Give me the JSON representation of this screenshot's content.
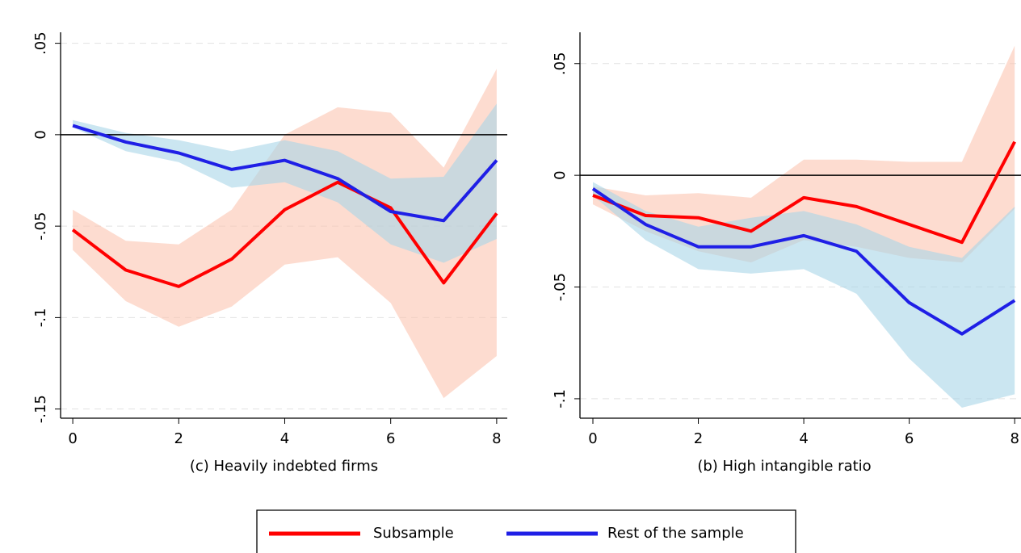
{
  "chart_data": [
    {
      "type": "line",
      "title": "(c)  Heavily indebted firms",
      "x": [
        0,
        1,
        2,
        3,
        4,
        5,
        6,
        7,
        8
      ],
      "xlim": [
        -0.23,
        8.2
      ],
      "xticks": [
        0,
        2,
        4,
        6,
        8
      ],
      "ylim": [
        -0.155,
        0.056
      ],
      "yticks": [
        {
          "value": -0.15,
          "label": "-.15"
        },
        {
          "value": -0.1,
          "label": "-.1"
        },
        {
          "value": -0.05,
          "label": "-.05"
        },
        0,
        {
          "value": 0.05,
          "label": ".05"
        }
      ],
      "grid": true,
      "series": [
        {
          "name": "Subsample",
          "color": "#ff0000",
          "band_color": "#fbc4b0",
          "values": [
            -0.052,
            -0.074,
            -0.083,
            -0.068,
            -0.041,
            -0.026,
            -0.04,
            -0.081,
            -0.043
          ],
          "lower": [
            -0.063,
            -0.091,
            -0.105,
            -0.094,
            -0.071,
            -0.067,
            -0.092,
            -0.144,
            -0.121
          ],
          "upper": [
            -0.041,
            -0.058,
            -0.06,
            -0.041,
            0.0,
            0.015,
            0.012,
            -0.018,
            0.036
          ]
        },
        {
          "name": "Rest of the sample",
          "color": "#1f1fe6",
          "band_color": "#a9d6e8",
          "values": [
            0.005,
            -0.004,
            -0.01,
            -0.019,
            -0.014,
            -0.024,
            -0.042,
            -0.047,
            -0.014
          ],
          "lower": [
            0.004,
            -0.009,
            -0.015,
            -0.029,
            -0.026,
            -0.037,
            -0.06,
            -0.07,
            -0.057
          ],
          "upper": [
            0.008,
            0.001,
            -0.003,
            -0.009,
            -0.003,
            -0.009,
            -0.024,
            -0.023,
            0.017
          ]
        }
      ]
    },
    {
      "type": "line",
      "title": "(b)  High intangible ratio",
      "x": [
        0,
        1,
        2,
        3,
        4,
        5,
        6,
        7,
        8
      ],
      "xlim": [
        -0.245,
        8.12
      ],
      "xticks": [
        0,
        2,
        4,
        6,
        8
      ],
      "ylim": [
        -0.1087,
        0.064
      ],
      "yticks": [
        {
          "value": -0.1,
          "label": "-.1"
        },
        {
          "value": -0.05,
          "label": "-.05"
        },
        0,
        {
          "value": 0.05,
          "label": ".05"
        }
      ],
      "grid": true,
      "series": [
        {
          "name": "Subsample",
          "color": "#ff0000",
          "band_color": "#fbc4b0",
          "values": [
            -0.009,
            -0.018,
            -0.019,
            -0.025,
            -0.01,
            -0.014,
            -0.022,
            -0.03,
            0.015
          ],
          "lower": [
            -0.013,
            -0.025,
            -0.034,
            -0.039,
            -0.029,
            -0.032,
            -0.037,
            -0.039,
            -0.015
          ],
          "upper": [
            -0.005,
            -0.009,
            -0.008,
            -0.01,
            0.007,
            0.007,
            0.006,
            0.006,
            0.058
          ]
        },
        {
          "name": "Rest of the sample",
          "color": "#1f1fe6",
          "band_color": "#a9d6e8",
          "values": [
            -0.006,
            -0.022,
            -0.032,
            -0.032,
            -0.027,
            -0.034,
            -0.057,
            -0.071,
            -0.056
          ],
          "lower": [
            -0.009,
            -0.029,
            -0.042,
            -0.044,
            -0.042,
            -0.053,
            -0.082,
            -0.104,
            -0.098
          ],
          "upper": [
            -0.003,
            -0.016,
            -0.023,
            -0.019,
            -0.016,
            -0.022,
            -0.032,
            -0.037,
            -0.014
          ]
        }
      ]
    }
  ]
}
